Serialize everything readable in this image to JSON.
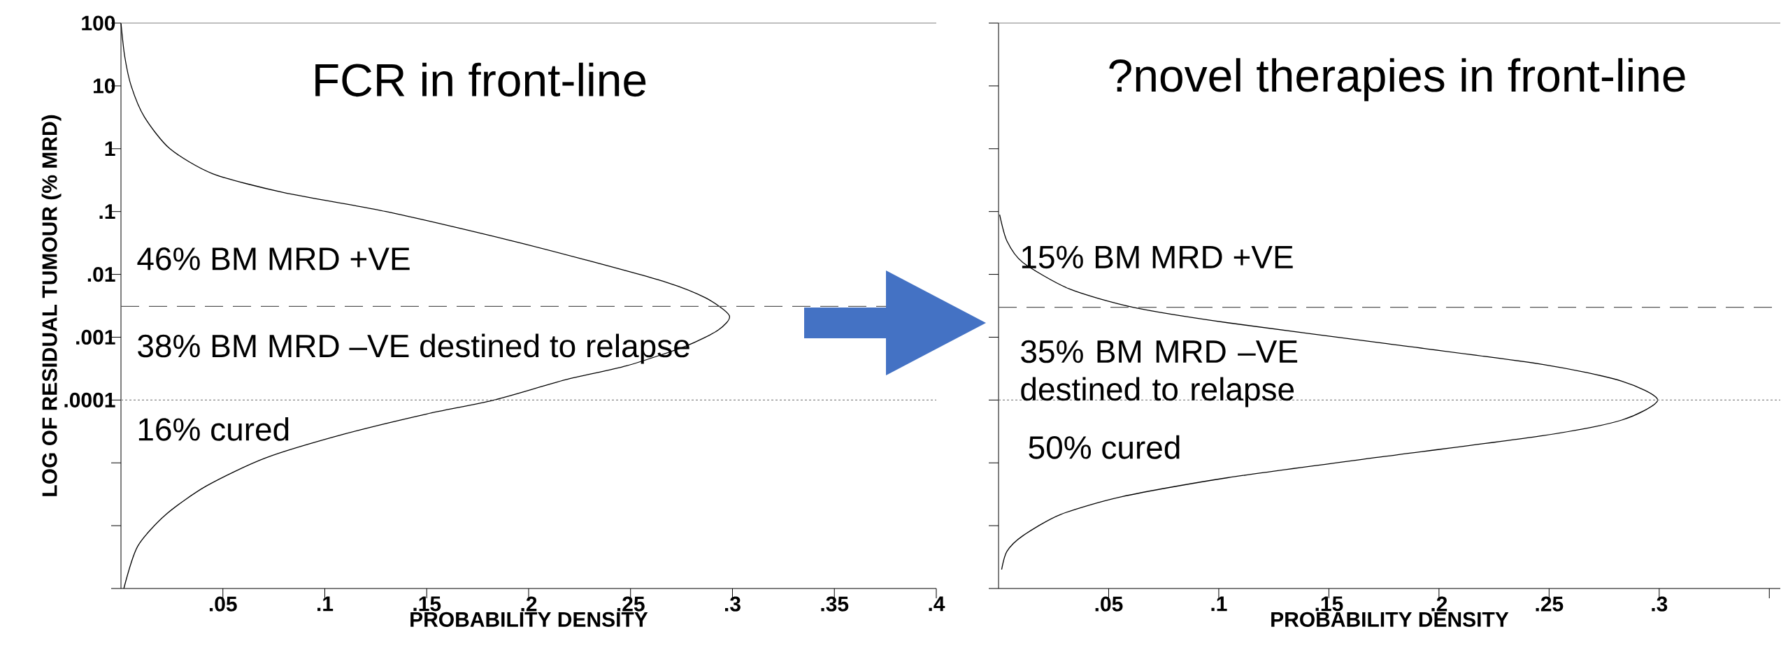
{
  "chart_data": [
    {
      "type": "line",
      "title": "FCR in front-line",
      "xlabel": "PROBABILITY DENSITY",
      "ylabel": "LOG OF RESIDUAL TUMOUR (% MRD)",
      "log": true,
      "color": "#000000",
      "x": [
        0,
        0.0018,
        0.005,
        0.0115,
        0.024,
        0.045,
        0.08,
        0.13,
        0.189,
        0.228,
        0.267,
        0.287,
        0.2985,
        0.293,
        0.277,
        0.248,
        0.218,
        0.183,
        0.15,
        0.11,
        0.071,
        0.042,
        0.022,
        0.0082,
        0.0014
      ],
      "values": [
        100,
        30,
        10,
        3.2,
        1,
        0.4,
        0.2,
        0.1,
        0.036,
        0.017,
        0.0076,
        0.0042,
        0.0022,
        0.0013,
        0.00072,
        0.00035,
        0.00021,
        0.0001,
        6e-05,
        2.9e-05,
        1.2e-05,
        4.3e-06,
        1.5e-06,
        4.7e-07,
        1e-07
      ],
      "xlim": [
        0,
        0.4
      ],
      "ylim": [
        1e-07,
        100
      ],
      "xticks": [
        {
          "value": 0.05,
          "label": ".05"
        },
        {
          "value": 0.1,
          "label": ".1"
        },
        {
          "value": 0.15,
          "label": ".15"
        },
        {
          "value": 0.2,
          "label": ".2"
        },
        {
          "value": 0.25,
          "label": ".25"
        },
        {
          "value": 0.3,
          "label": ".3"
        },
        {
          "value": 0.35,
          "label": ".35"
        },
        {
          "value": 0.4,
          "label": ".4"
        }
      ],
      "yticks": [
        100,
        10,
        1,
        {
          "value": 0.1,
          "label": ".1"
        },
        {
          "value": 0.01,
          "label": ".01"
        },
        {
          "value": 0.001,
          "label": ".001"
        },
        {
          "value": 0.0001,
          "label": ".0001"
        },
        {
          "value": 1e-05,
          "label": null
        },
        {
          "value": 1e-06,
          "label": null
        },
        {
          "value": 1e-07,
          "label": null
        }
      ],
      "ref_lines": [
        {
          "axis": "y",
          "value": 0.0031,
          "line_style": "dashed",
          "color": "#555555"
        },
        {
          "axis": "y",
          "value": 0.0001,
          "line_style": "dotted",
          "color": "#888888"
        }
      ],
      "annotations": [
        "46% BM MRD +VE",
        "38% BM MRD –VE destined to relapse",
        "16% cured"
      ]
    },
    {
      "type": "line",
      "title": "?novel therapies in front-line",
      "xlabel": "PROBABILITY DENSITY",
      "log": true,
      "color": "#000000",
      "tick_labels": "x",
      "x": [
        0.0005,
        0.0038,
        0.011,
        0.032,
        0.061,
        0.104,
        0.175,
        0.247,
        0.283,
        0.2993,
        0.283,
        0.247,
        0.175,
        0.104,
        0.056,
        0.028,
        0.011,
        0.0038,
        0.0014
      ],
      "values": [
        0.089,
        0.034,
        0.0155,
        0.0059,
        0.003,
        0.0017,
        0.0008,
        0.00037,
        0.0002,
        0.0001,
        4.8e-05,
        2.7e-05,
        1.26e-05,
        5.8e-06,
        2.9e-06,
        1.5e-06,
        6.9e-07,
        3.9e-07,
        2e-07
      ],
      "xlim": [
        0,
        0.355
      ],
      "ylim": [
        1e-07,
        100
      ],
      "xticks": [
        {
          "value": 0.05,
          "label": ".05"
        },
        {
          "value": 0.1,
          "label": ".1"
        },
        {
          "value": 0.15,
          "label": ".15"
        },
        {
          "value": 0.2,
          "label": ".2"
        },
        {
          "value": 0.25,
          "label": ".25"
        },
        {
          "value": 0.3,
          "label": ".3"
        },
        {
          "value": 0.35,
          "label": null
        }
      ],
      "yticks": [
        {
          "value": 100,
          "label": null
        },
        {
          "value": 10,
          "label": null
        },
        {
          "value": 1,
          "label": null
        },
        {
          "value": 0.1,
          "label": null
        },
        {
          "value": 0.01,
          "label": null
        },
        {
          "value": 0.001,
          "label": null
        },
        {
          "value": 0.0001,
          "label": null
        },
        {
          "value": 1e-05,
          "label": null
        },
        {
          "value": 1e-06,
          "label": null
        },
        {
          "value": 1e-07,
          "label": null
        }
      ],
      "ref_lines": [
        {
          "axis": "y",
          "value": 0.003,
          "line_style": "dashed",
          "color": "#555555"
        },
        {
          "axis": "y",
          "value": 0.0001,
          "line_style": "dotted",
          "color": "#888888"
        }
      ],
      "annotations": [
        "15% BM MRD +VE",
        "35% BM MRD –VE destined to relapse",
        "50% cured"
      ]
    }
  ]
}
